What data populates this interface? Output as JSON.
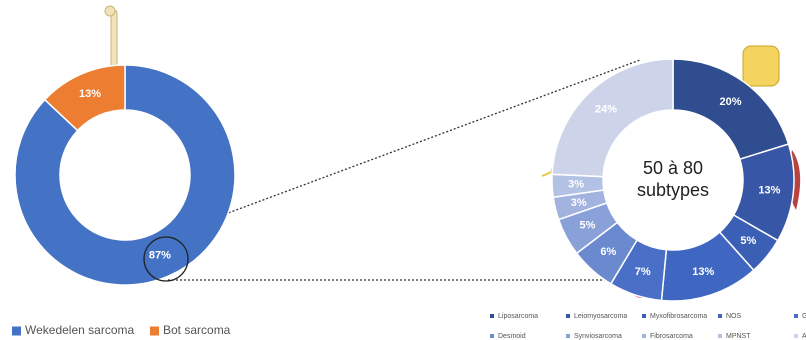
{
  "chart_data": [
    {
      "type": "pie",
      "categories": [
        "Wekedelen sarcoma",
        "Bot sarcoma"
      ],
      "values": [
        87,
        13
      ],
      "value_labels": [
        "87%",
        "13%"
      ],
      "colors": [
        "#4472c4",
        "#ed7d31"
      ]
    },
    {
      "type": "pie",
      "center_text": [
        "50 à 80",
        "subtypes"
      ],
      "categories": [
        "Liposarcoma",
        "Leiomyosarcoma",
        "Myxofibrosarcoma",
        "NOS",
        "GIST",
        "Desmoid",
        "Synviosarcoma",
        "Fibrosarcoma",
        "MPNST",
        "Andere"
      ],
      "values": [
        20,
        13,
        5,
        13,
        7,
        6,
        5,
        3,
        3,
        24
      ],
      "value_labels": [
        "20%",
        "13%",
        "5%",
        "13%",
        "7%",
        "6%",
        "5%",
        "3%",
        "3%",
        "24%"
      ],
      "colors": [
        "#2f4d8f",
        "#3757a6",
        "#3b5fb4",
        "#3f66c0",
        "#4a6fc6",
        "#6a89cf",
        "#89a0d8",
        "#a2b3df",
        "#b3c1e5",
        "#cdd4e9"
      ]
    }
  ]
}
